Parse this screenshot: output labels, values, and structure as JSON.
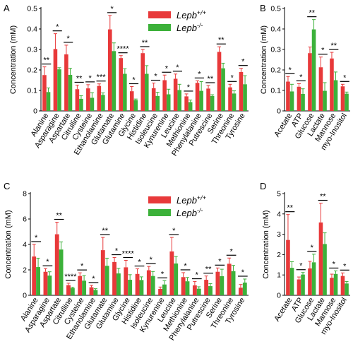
{
  "colors": {
    "wt": "#e8393a",
    "ko": "#3cb13a",
    "axis": "#000000"
  },
  "chart_data": [
    {
      "panel_label": "A",
      "type": "bar",
      "ylabel": "Concentration (mM)",
      "ylim": [
        0,
        0.5
      ],
      "yticks": [
        "0",
        "0.1",
        "0.2",
        "0.3",
        "0.4",
        "0.5"
      ],
      "legend": {
        "placement": "top-right"
      },
      "categories": [
        "Alanine",
        "Asparagine",
        "Aspartate",
        "Citrulline",
        "Cysteine",
        "Ethanolamine",
        "Glutamate",
        "Glutamine",
        "Glycine",
        "Histidine",
        "Isoleucine",
        "Kynurenine",
        "Leucine",
        "Methionine",
        "Phenylalanine",
        "Putrescine",
        "Serine",
        "Threonine",
        "Tyrosine"
      ],
      "series": [
        {
          "name": "Lepb+/+",
          "color": "#e8393a",
          "values": [
            0.175,
            0.302,
            0.276,
            0.106,
            0.11,
            0.122,
            0.398,
            0.258,
            0.096,
            0.282,
            0.111,
            0.15,
            0.157,
            0.071,
            0.137,
            0.109,
            0.288,
            0.115,
            0.19
          ],
          "errors": [
            0.04,
            0.075,
            0.045,
            0.02,
            0.018,
            0.01,
            0.068,
            0.012,
            0.023,
            0.018,
            0.025,
            0.025,
            0.023,
            0.012,
            0.01,
            0.015,
            0.025,
            0.015,
            0.018
          ]
        },
        {
          "name": "Lepb-/-",
          "color": "#3cb13a",
          "values": [
            0.092,
            0.203,
            0.176,
            0.059,
            0.064,
            0.078,
            0.292,
            0.181,
            0.053,
            0.181,
            0.073,
            0.081,
            0.102,
            0.043,
            0.098,
            0.073,
            0.208,
            0.085,
            0.13
          ],
          "errors": [
            0.02,
            0.008,
            0.032,
            0.015,
            0.025,
            0.01,
            0.04,
            0.025,
            0.005,
            0.04,
            0.018,
            0.025,
            0.028,
            0.01,
            0.045,
            0.006,
            0.025,
            0.013,
            0.042
          ]
        }
      ],
      "significance": [
        "**",
        "*",
        "*",
        "**",
        "*",
        "***",
        "*",
        "****",
        "*",
        "**",
        "*",
        "*",
        "*",
        "*",
        "*",
        "**",
        "**",
        "*",
        "*"
      ]
    },
    {
      "panel_label": "B",
      "type": "bar",
      "ylabel": "Concentration (mM)",
      "ylim": [
        0,
        0.5
      ],
      "yticks": [
        "0",
        "0.1",
        "0.2",
        "0.3",
        "0.4",
        "0.5"
      ],
      "categories": [
        "Acetate",
        "ATP",
        "Glucose",
        "Lactate",
        "Mannose",
        "myo-Inositol"
      ],
      "series": [
        {
          "name": "Lepb+/+",
          "color": "#e8393a",
          "values": [
            0.143,
            0.118,
            0.282,
            0.213,
            0.256,
            0.12
          ],
          "errors": [
            0.025,
            0.015,
            0.03,
            0.05,
            0.03,
            0.01
          ]
        },
        {
          "name": "Lepb-/-",
          "color": "#3cb13a",
          "values": [
            0.095,
            0.083,
            0.398,
            0.098,
            0.15,
            0.084
          ],
          "errors": [
            0.035,
            0.025,
            0.048,
            0.04,
            0.04,
            0.008
          ]
        }
      ],
      "significance": [
        "*",
        "*",
        "**",
        "*",
        "**",
        "*"
      ]
    },
    {
      "panel_label": "C",
      "type": "bar",
      "ylabel": "Concentration (mM)",
      "ylim": [
        0,
        8
      ],
      "yticks": [
        "0",
        "2",
        "4",
        "6",
        "8"
      ],
      "legend": {
        "placement": "top-right"
      },
      "categories": [
        "Alanine",
        "Asparagine",
        "Aspartate",
        "Citrulline",
        "Cysteine",
        "Ethanolamine",
        "Glutamate",
        "Glutamine",
        "Glycine",
        "Histidine",
        "Isoleucine",
        "Kynurenine",
        "Leucine",
        "Methionine",
        "Phenylalanine",
        "Putrescine",
        "Serine",
        "Threonine",
        "Tyrosine"
      ],
      "series": [
        {
          "name": "Lepb+/+",
          "color": "#e8393a",
          "values": [
            3.05,
            1.85,
            4.8,
            0.8,
            1.52,
            0.63,
            3.55,
            2.62,
            2.2,
            1.68,
            1.97,
            0.5,
            3.45,
            1.43,
            0.78,
            1.22,
            1.85,
            2.48,
            0.6
          ],
          "errors": [
            0.95,
            0.25,
            0.95,
            0.15,
            0.25,
            0.15,
            1.0,
            0.35,
            0.55,
            0.4,
            0.3,
            0.15,
            1.1,
            0.35,
            0.3,
            0.3,
            0.3,
            0.45,
            0.25
          ]
        },
        {
          "name": "Lepb-/-",
          "color": "#3cb13a",
          "values": [
            2.22,
            1.55,
            3.6,
            0.56,
            1.15,
            0.42,
            2.32,
            1.72,
            1.22,
            1.2,
            1.52,
            0.85,
            2.5,
            1.1,
            0.52,
            0.72,
            1.5,
            1.9,
            1.0
          ],
          "errors": [
            0.7,
            0.3,
            0.6,
            0.08,
            0.4,
            0.1,
            0.6,
            0.4,
            0.4,
            0.25,
            0.35,
            0.3,
            0.55,
            0.3,
            0.15,
            0.2,
            0.55,
            0.45,
            0.28
          ]
        }
      ],
      "significance": [
        "*",
        "*",
        "**",
        "****",
        "*",
        "*",
        "**",
        "*",
        "****",
        "*",
        "*",
        "*",
        "*",
        "*",
        "*",
        "**",
        "*",
        "*",
        "*"
      ]
    },
    {
      "panel_label": "D",
      "type": "bar",
      "ylabel": "Concentration (mM)",
      "ylim": [
        0,
        5
      ],
      "yticks": [
        "0",
        "1",
        "2",
        "3",
        "4",
        "5"
      ],
      "categories": [
        "Acetate",
        "ATP",
        "Glucose",
        "Lactate",
        "Mannose",
        "myo-Inositol"
      ],
      "series": [
        {
          "name": "Lepb+/+",
          "color": "#e8393a",
          "values": [
            2.72,
            0.78,
            1.32,
            3.58,
            0.86,
            0.95
          ],
          "errors": [
            1.25,
            0.12,
            0.35,
            0.95,
            0.18,
            0.15
          ]
        },
        {
          "name": "Lepb-/-",
          "color": "#3cb13a",
          "values": [
            1.35,
            1.02,
            1.62,
            2.52,
            1.05,
            0.58
          ],
          "errors": [
            0.3,
            0.1,
            0.4,
            0.55,
            0.15,
            0.1
          ]
        }
      ],
      "significance": [
        "**",
        "*",
        "*",
        "**",
        "*",
        "*"
      ]
    }
  ]
}
